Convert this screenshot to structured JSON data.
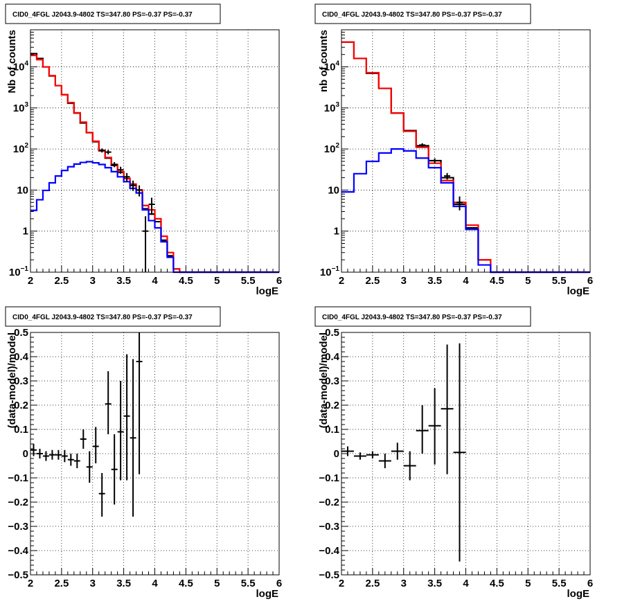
{
  "chart_data": [
    {
      "type": "line",
      "panel": "top-left",
      "title": "CID0_4FGL J2043.9-4802 TS=347.80 PS=-0.37 PS=-0.37",
      "xlabel": "logE",
      "ylabel": "Nb of counts",
      "xlim": [
        2,
        6
      ],
      "ylim": [
        0.1,
        80000
      ],
      "yscale": "log",
      "xticks": [
        "2",
        "2.5",
        "3",
        "3.5",
        "4",
        "4.5",
        "5",
        "5.5",
        "6"
      ],
      "yticks": [
        {
          "v": 0.1,
          "b": "10",
          "e": "−1"
        },
        {
          "v": 1,
          "b": "1",
          "e": ""
        },
        {
          "v": 10,
          "b": "10",
          "e": ""
        },
        {
          "v": 100,
          "b": "10",
          "e": "2"
        },
        {
          "v": 1000,
          "b": "10",
          "e": "3"
        },
        {
          "v": 10000,
          "b": "10",
          "e": "4"
        }
      ],
      "grid": true,
      "bin_edges": [
        2.0,
        2.1,
        2.2,
        2.3,
        2.4,
        2.5,
        2.6,
        2.7,
        2.8,
        2.9,
        3.0,
        3.1,
        3.2,
        3.3,
        3.4,
        3.5,
        3.6,
        3.7,
        3.8,
        3.9,
        4.0,
        4.1,
        4.2,
        4.3,
        4.4,
        4.5,
        4.6,
        4.7,
        4.8,
        4.9,
        5.0,
        5.1,
        5.2,
        5.3,
        5.4,
        5.5,
        5.6,
        5.7,
        5.8,
        5.9,
        6.0
      ],
      "series": [
        {
          "color": "#000000",
          "draw": "hist",
          "values": [
            21000,
            16000,
            10000,
            6000,
            3500,
            2100,
            1300,
            750,
            430,
            250,
            150,
            92,
            60,
            40,
            27,
            19,
            13,
            10,
            3.5,
            2.6,
            1.7,
            0.6,
            0.25,
            0.12,
            0.1,
            0.1,
            0.1,
            0.1,
            0.1,
            0.1,
            0.1,
            0.1,
            0.1,
            0.1,
            0.1,
            0.1,
            0.1,
            0.1,
            0.1,
            0.1
          ]
        },
        {
          "color": "#ff0000",
          "draw": "hist",
          "values": [
            19000,
            15000,
            10000,
            6100,
            3500,
            2100,
            1350,
            760,
            450,
            250,
            155,
            90,
            62,
            42,
            28,
            19,
            14,
            10,
            4.2,
            3.3,
            2.0,
            0.75,
            0.3,
            0.12,
            0.1,
            0.1,
            0.1,
            0.1,
            0.1,
            0.1,
            0.1,
            0.1,
            0.1,
            0.1,
            0.1,
            0.1,
            0.1,
            0.1,
            0.1,
            0.1
          ]
        },
        {
          "color": "#0000ff",
          "draw": "hist",
          "values": [
            3.2,
            5.8,
            9.8,
            15,
            22,
            30,
            37,
            43,
            47,
            49,
            46,
            42,
            35,
            28,
            21,
            16,
            11,
            8.5,
            3.3,
            1.8,
            1.2,
            0.55,
            0.23,
            0.1,
            0.1,
            0.1,
            0.1,
            0.1,
            0.1,
            0.1,
            0.1,
            0.1,
            0.1,
            0.1,
            0.1,
            0.1,
            0.1,
            0.1,
            0.1,
            0.1
          ]
        },
        {
          "color": "#000000",
          "draw": "points",
          "x": [
            3.15,
            3.25,
            3.35,
            3.45,
            3.55,
            3.65,
            3.75,
            3.85,
            3.95
          ],
          "y": [
            92,
            84,
            42,
            31,
            21,
            13,
            10,
            1,
            4.5
          ],
          "ylo": [
            82,
            74,
            36,
            25,
            16,
            9.5,
            7,
            0.05,
            2.5
          ],
          "yhi": [
            103,
            95,
            48,
            37,
            26,
            17,
            13,
            2.3,
            6.5
          ]
        }
      ]
    },
    {
      "type": "line",
      "panel": "top-right",
      "title": "CID0_4FGL J2043.9-4802 TS=347.80 PS=-0.37 PS=-0.37",
      "xlabel": "logE",
      "ylabel": "nb of counts",
      "xlim": [
        2,
        6
      ],
      "ylim": [
        0.1,
        80000
      ],
      "yscale": "log",
      "xticks": [
        "2",
        "2.5",
        "3",
        "3.5",
        "4",
        "4.5",
        "5",
        "5.5",
        "6"
      ],
      "yticks": [
        {
          "v": 0.1,
          "b": "10",
          "e": "−1"
        },
        {
          "v": 1,
          "b": "1",
          "e": ""
        },
        {
          "v": 10,
          "b": "10",
          "e": ""
        },
        {
          "v": 100,
          "b": "10",
          "e": "2"
        },
        {
          "v": 1000,
          "b": "10",
          "e": "3"
        },
        {
          "v": 10000,
          "b": "10",
          "e": "4"
        }
      ],
      "grid": true,
      "bin_edges": [
        2.0,
        2.2,
        2.4,
        2.6,
        2.8,
        3.0,
        3.2,
        3.4,
        3.6,
        3.8,
        4.0,
        4.2,
        4.4,
        4.6,
        4.8,
        5.0,
        5.2,
        5.4,
        5.6,
        5.8,
        6.0
      ],
      "series": [
        {
          "color": "#000000",
          "draw": "hist",
          "values": [
            40000,
            16000,
            7000,
            3000,
            750,
            280,
            120,
            52,
            20,
            4.5,
            1.2,
            0.2,
            0.1,
            0.1,
            0.1,
            0.1,
            0.1,
            0.1,
            0.1,
            0.1
          ]
        },
        {
          "color": "#ff0000",
          "draw": "hist",
          "values": [
            40000,
            16000,
            7200,
            3000,
            750,
            270,
            110,
            45,
            17,
            5,
            1.4,
            0.2,
            0.1,
            0.1,
            0.1,
            0.1,
            0.1,
            0.1,
            0.1,
            0.1
          ]
        },
        {
          "color": "#0000ff",
          "draw": "hist",
          "values": [
            9,
            25,
            50,
            80,
            100,
            90,
            60,
            35,
            15,
            4,
            1.1,
            0.15,
            0.1,
            0.1,
            0.1,
            0.1,
            0.1,
            0.1,
            0.1,
            0.1
          ]
        },
        {
          "color": "#000000",
          "draw": "points",
          "x": [
            3.3,
            3.5,
            3.7,
            3.9
          ],
          "y": [
            125,
            52,
            22,
            5
          ],
          "ylo": [
            112,
            45,
            18,
            3.2
          ],
          "yhi": [
            138,
            59,
            26,
            7
          ]
        }
      ]
    },
    {
      "type": "scatter",
      "panel": "bottom-left",
      "title": "CID0_4FGL J2043.9-4802 TS=347.80 PS=-0.37 PS=-0.37",
      "xlabel": "logE",
      "ylabel": "(data-model)/model",
      "xlim": [
        2,
        6
      ],
      "ylim": [
        -0.5,
        0.5
      ],
      "yscale": "linear",
      "xticks": [
        "2",
        "2.5",
        "3",
        "3.5",
        "4",
        "4.5",
        "5",
        "5.5",
        "6"
      ],
      "yticks": [
        {
          "v": -0.5,
          "b": "−0.5",
          "e": ""
        },
        {
          "v": -0.4,
          "b": "−0.4",
          "e": ""
        },
        {
          "v": -0.3,
          "b": "−0.3",
          "e": ""
        },
        {
          "v": -0.2,
          "b": "−0.2",
          "e": ""
        },
        {
          "v": -0.1,
          "b": "−0.1",
          "e": ""
        },
        {
          "v": 0,
          "b": "0",
          "e": ""
        },
        {
          "v": 0.1,
          "b": "0.1",
          "e": ""
        },
        {
          "v": 0.2,
          "b": "0.2",
          "e": ""
        },
        {
          "v": 0.3,
          "b": "0.3",
          "e": ""
        },
        {
          "v": 0.4,
          "b": "0.4",
          "e": ""
        },
        {
          "v": 0.5,
          "b": "0.5",
          "e": ""
        }
      ],
      "grid": true,
      "xerr": 0.05,
      "series": [
        {
          "color": "#000000",
          "draw": "points",
          "x": [
            2.05,
            2.15,
            2.25,
            2.35,
            2.45,
            2.55,
            2.65,
            2.75,
            2.85,
            2.95,
            3.05,
            3.15,
            3.25,
            3.35,
            3.45,
            3.55,
            3.65,
            3.75
          ],
          "y": [
            0.015,
            0.0,
            -0.01,
            -0.005,
            -0.005,
            -0.01,
            -0.025,
            -0.03,
            0.06,
            -0.055,
            0.03,
            -0.165,
            0.205,
            -0.065,
            0.09,
            0.155,
            0.065,
            0.38
          ],
          "ylo": [
            -0.01,
            -0.02,
            -0.03,
            -0.025,
            -0.025,
            -0.035,
            -0.05,
            -0.06,
            0.02,
            -0.12,
            -0.04,
            -0.26,
            0.08,
            -0.21,
            -0.11,
            -0.11,
            -0.26,
            -0.085
          ],
          "yhi": [
            0.04,
            0.02,
            0.01,
            0.015,
            0.015,
            0.015,
            0.0,
            0.0,
            0.1,
            0.01,
            0.11,
            -0.08,
            0.34,
            0.08,
            0.3,
            0.41,
            0.39,
            0.5
          ]
        }
      ]
    },
    {
      "type": "scatter",
      "panel": "bottom-right",
      "title": "CID0_4FGL J2043.9-4802 TS=347.80 PS=-0.37 PS=-0.37",
      "xlabel": "logE",
      "ylabel": "(data-model)/model",
      "xlim": [
        2,
        6
      ],
      "ylim": [
        -0.5,
        0.5
      ],
      "yscale": "linear",
      "xticks": [
        "2",
        "2.5",
        "3",
        "3.5",
        "4",
        "4.5",
        "5",
        "5.5",
        "6"
      ],
      "yticks": [
        {
          "v": -0.5,
          "b": "−0.5",
          "e": ""
        },
        {
          "v": -0.4,
          "b": "−0.4",
          "e": ""
        },
        {
          "v": -0.3,
          "b": "−0.3",
          "e": ""
        },
        {
          "v": -0.2,
          "b": "−0.2",
          "e": ""
        },
        {
          "v": -0.1,
          "b": "−0.1",
          "e": ""
        },
        {
          "v": 0,
          "b": "0",
          "e": ""
        },
        {
          "v": 0.1,
          "b": "0.1",
          "e": ""
        },
        {
          "v": 0.2,
          "b": "0.2",
          "e": ""
        },
        {
          "v": 0.3,
          "b": "0.3",
          "e": ""
        },
        {
          "v": 0.4,
          "b": "0.4",
          "e": ""
        },
        {
          "v": 0.5,
          "b": "0.5",
          "e": ""
        }
      ],
      "grid": true,
      "xerr": 0.1,
      "series": [
        {
          "color": "#000000",
          "draw": "points",
          "x": [
            2.1,
            2.3,
            2.5,
            2.7,
            2.9,
            3.1,
            3.3,
            3.5,
            3.7,
            3.9
          ],
          "y": [
            0.01,
            -0.01,
            -0.005,
            -0.03,
            0.01,
            -0.05,
            0.095,
            0.115,
            0.185,
            0.005
          ],
          "ylo": [
            -0.01,
            -0.025,
            -0.02,
            -0.06,
            -0.025,
            -0.11,
            0.0,
            -0.045,
            -0.085,
            -0.445
          ],
          "yhi": [
            0.03,
            0.005,
            0.01,
            0.0,
            0.045,
            0.01,
            0.2,
            0.27,
            0.45,
            0.455
          ]
        }
      ]
    }
  ]
}
